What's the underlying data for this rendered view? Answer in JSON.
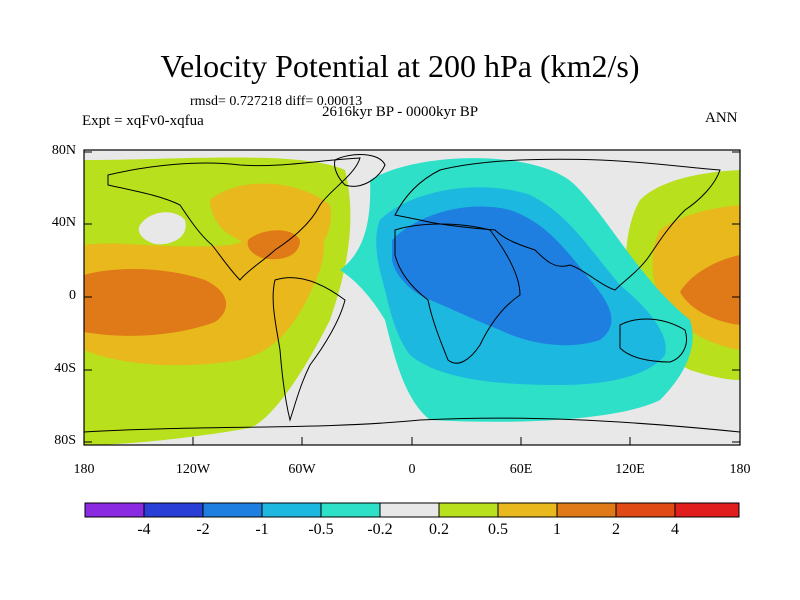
{
  "title": "Velocity Potential at 200 hPa (km2/s)",
  "stats": "rmsd= 0.727218 diff= 0.00013",
  "experiment": "Expt = xqFv0-xqfua",
  "period": "2616kyr BP - 0000kyr BP",
  "season": "ANN",
  "lat_labels": [
    "80N",
    "40N",
    "0",
    "40S",
    "80S"
  ],
  "lon_labels": [
    "180",
    "120W",
    "60W",
    "0",
    "60E",
    "120E",
    "180"
  ],
  "colorbar": {
    "labels": [
      "-4",
      "-2",
      "-1",
      "-0.5",
      "-0.2",
      "0.2",
      "0.5",
      "1",
      "2",
      "4"
    ],
    "colors": [
      "#8a2be2",
      "#2a3fd6",
      "#1e7fe0",
      "#1cb8e0",
      "#2ee0c8",
      "#e8e8e8",
      "#b8e01c",
      "#e8b81c",
      "#e07a18",
      "#e04a14",
      "#e01e1e"
    ]
  },
  "palette": {
    "neutral": "#e8e8e8",
    "pos1": "#b8e01c",
    "pos2": "#e8b81c",
    "pos3": "#e07a18",
    "neg1": "#2ee0c8",
    "neg2": "#1cb8e0",
    "neg3": "#1e7fe0"
  }
}
